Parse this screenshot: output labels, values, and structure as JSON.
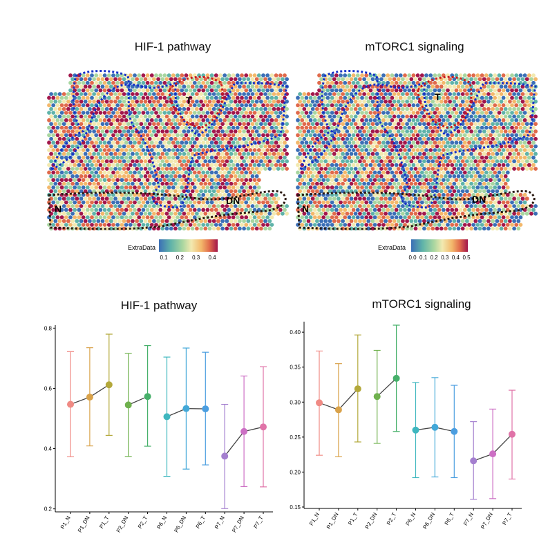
{
  "top_panels": [
    {
      "title": "HIF-1 pathway",
      "region_labels": {
        "t": "T",
        "n": "N",
        "dn": "DN"
      },
      "legend": {
        "label": "ExtraData",
        "ticks": [
          "0.1",
          "0.2",
          "0.3",
          "0.4"
        ]
      }
    },
    {
      "title": "mTORC1  signaling",
      "region_labels": {
        "t": "T",
        "n": "N",
        "dn": "DN"
      },
      "legend": {
        "label": "ExtraData",
        "ticks": [
          "0.0",
          "0.1",
          "0.2",
          "0.3",
          "0.4",
          "0.5"
        ]
      }
    }
  ],
  "colors": {
    "scale": [
      "#3b6fb6",
      "#5fb3a9",
      "#a8d6a0",
      "#f2e9b0",
      "#f3b86b",
      "#e06a4b",
      "#a2174b"
    ],
    "tumor_outline": "#c81e1e",
    "stroma_outline": "#1530c8",
    "normal_outline": "#2a1a12",
    "series": [
      "#f08a84",
      "#d9a24a",
      "#b3a83a",
      "#6fb14d",
      "#46b06a",
      "#3fb7bf",
      "#42a8d8",
      "#4b9ee0",
      "#a47fcf",
      "#cc6fc4",
      "#e073a8"
    ]
  },
  "chart_data": [
    {
      "type": "scatter",
      "title": "HIF-1 pathway",
      "categories": [
        "P1_N",
        "P1_DN",
        "P1_T",
        "P2_DN",
        "P2_T",
        "P6_N",
        "P6_DN",
        "P6_T",
        "P7_N",
        "P7_DN",
        "P7_T"
      ],
      "values": [
        0.547,
        0.571,
        0.612,
        0.545,
        0.573,
        0.506,
        0.533,
        0.532,
        0.375,
        0.457,
        0.472
      ],
      "error_upper": [
        0.722,
        0.735,
        0.78,
        0.716,
        0.742,
        0.704,
        0.734,
        0.72,
        0.547,
        0.641,
        0.672
      ],
      "error_lower": [
        0.373,
        0.409,
        0.444,
        0.374,
        0.408,
        0.308,
        0.332,
        0.346,
        0.201,
        0.274,
        0.273
      ],
      "groups": [
        [
          0,
          1,
          2
        ],
        [
          3,
          4
        ],
        [
          5,
          6,
          7
        ],
        [
          8,
          9,
          10
        ]
      ],
      "ylim": [
        0.19,
        0.81
      ],
      "yticks": [
        "0.2",
        "0.4",
        "0.6",
        "0.8"
      ],
      "ytick_values": [
        0.2,
        0.4,
        0.6,
        0.8
      ],
      "grid": false
    },
    {
      "type": "scatter",
      "title": "mTORC1 signaling",
      "categories": [
        "P1_N",
        "P1_DN",
        "P1_T",
        "P2_DN",
        "P2_T",
        "P6_N",
        "P6_DN",
        "P6_T",
        "P7_N",
        "P7_DN",
        "P7_T"
      ],
      "values": [
        0.299,
        0.289,
        0.319,
        0.308,
        0.334,
        0.26,
        0.264,
        0.258,
        0.216,
        0.226,
        0.254
      ],
      "error_upper": [
        0.373,
        0.355,
        0.396,
        0.374,
        0.41,
        0.328,
        0.335,
        0.324,
        0.272,
        0.29,
        0.317
      ],
      "error_lower": [
        0.224,
        0.222,
        0.243,
        0.241,
        0.258,
        0.192,
        0.193,
        0.192,
        0.161,
        0.162,
        0.19
      ],
      "groups": [
        [
          0,
          1,
          2
        ],
        [
          3,
          4
        ],
        [
          5,
          6,
          7
        ],
        [
          8,
          9,
          10
        ]
      ],
      "ylim": [
        0.148,
        0.415
      ],
      "yticks": [
        "0.15",
        "0.20",
        "0.25",
        "0.30",
        "0.35",
        "0.40"
      ],
      "ytick_values": [
        0.15,
        0.2,
        0.25,
        0.3,
        0.35,
        0.4
      ],
      "grid": false
    }
  ]
}
